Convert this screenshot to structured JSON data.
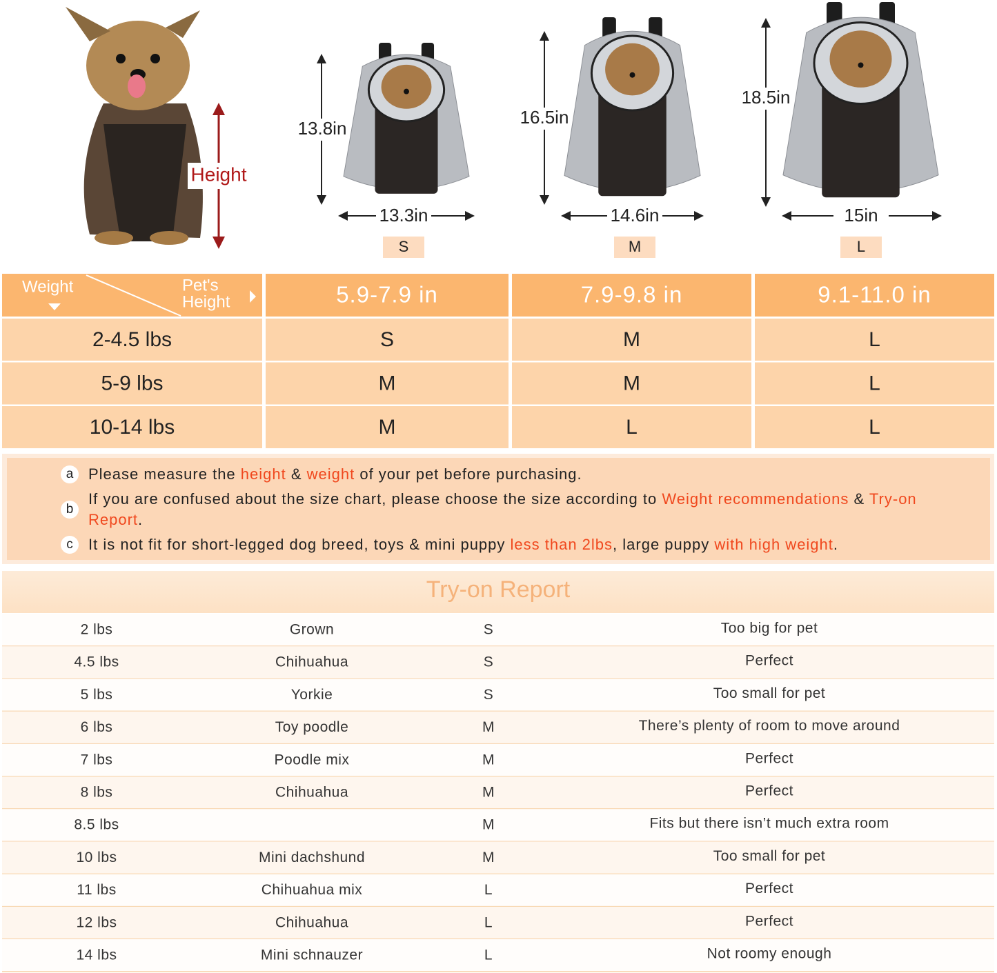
{
  "hero": {
    "height_label": "Height",
    "sizes": [
      {
        "height": "13.8in",
        "width": "13.3in",
        "size": "S"
      },
      {
        "height": "16.5in",
        "width": "14.6in",
        "size": "M"
      },
      {
        "height": "18.5in",
        "width": "15in",
        "size": "L"
      }
    ]
  },
  "size_table": {
    "corner_weight": "Weight",
    "corner_height": [
      "Pet's",
      "Height"
    ],
    "columns": [
      "5.9-7.9 in",
      "7.9-9.8 in",
      "9.1-11.0 in"
    ],
    "rows": [
      {
        "weight": "2-4.5 lbs",
        "sizes": [
          "S",
          "M",
          "L"
        ]
      },
      {
        "weight": "5-9 lbs",
        "sizes": [
          "M",
          "M",
          "L"
        ]
      },
      {
        "weight": "10-14 lbs",
        "sizes": [
          "M",
          "L",
          "L"
        ]
      }
    ]
  },
  "notes": [
    {
      "marker": "a",
      "parts": [
        {
          "text": "Please measure the "
        },
        {
          "text": "height",
          "color": "#f0481e"
        },
        {
          "text": " & "
        },
        {
          "text": "weight",
          "color": "#f0481e"
        },
        {
          "text": " of your pet before purchasing."
        }
      ]
    },
    {
      "marker": "b",
      "parts": [
        {
          "text": "If you are confused about the size chart, please choose the size according to "
        },
        {
          "text": "Weight recommendations",
          "color": "#f0481e"
        },
        {
          "text": " & "
        },
        {
          "text": "Try-on Report",
          "color": "#f0481e"
        },
        {
          "text": "."
        }
      ]
    },
    {
      "marker": "c",
      "parts": [
        {
          "text": "It is not fit for short-legged dog breed, toys & mini puppy "
        },
        {
          "text": "less than 2lbs",
          "color": "#f0481e"
        },
        {
          "text": ", large puppy "
        },
        {
          "text": "with high weight",
          "color": "#f0481e"
        },
        {
          "text": "."
        }
      ]
    }
  ],
  "report": {
    "title": "Try-on Report",
    "rows": [
      [
        "2 lbs",
        "Grown",
        "S",
        "Too big for pet"
      ],
      [
        "4.5 lbs",
        "Chihuahua",
        "S",
        "Perfect"
      ],
      [
        "5 lbs",
        "Yorkie",
        "S",
        "Too small for pet"
      ],
      [
        "6 lbs",
        "Toy poodle",
        "M",
        "There’s plenty of room to move around"
      ],
      [
        "7 lbs",
        "Poodle mix",
        "M",
        "Perfect"
      ],
      [
        "8 lbs",
        "Chihuahua",
        "M",
        "Perfect"
      ],
      [
        "8.5 lbs",
        null,
        "M",
        "Fits but there isn’t much extra room"
      ],
      [
        "10 lbs",
        "Mini dachshund",
        "M",
        "Too small for pet"
      ],
      [
        "11 lbs",
        "Chihuahua mix",
        "L",
        "Perfect"
      ],
      [
        "12 lbs",
        "Chihuahua",
        "L",
        "Perfect"
      ],
      [
        "14 lbs",
        "Mini schnauzer",
        "L",
        "Not roomy enough"
      ]
    ]
  }
}
